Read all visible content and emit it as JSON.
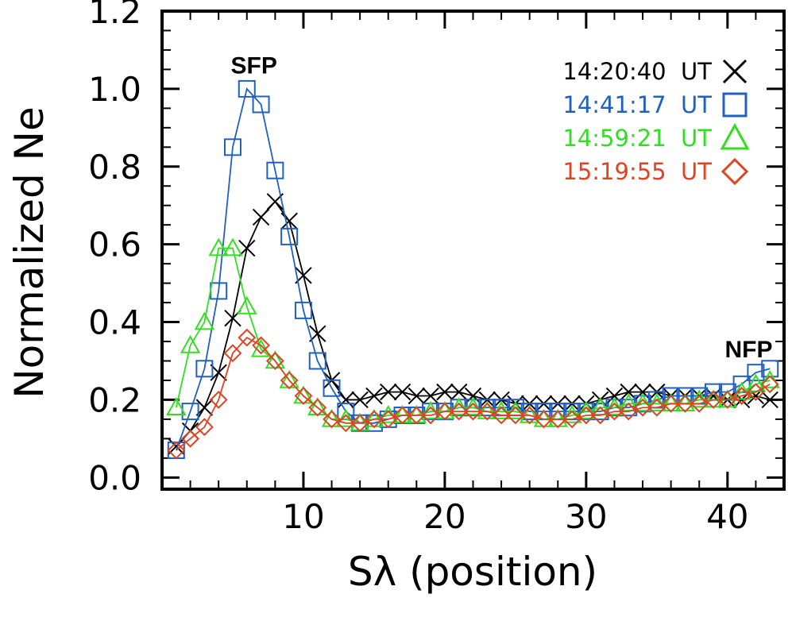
{
  "chart_data": {
    "type": "line",
    "title": "",
    "xlabel": "Sλ (position)",
    "ylabel": "Normalized Ne",
    "xlim": [
      0,
      44
    ],
    "ylim": [
      -0.03,
      1.2
    ],
    "xticks": [
      10,
      20,
      30,
      40
    ],
    "yticks": [
      0.0,
      0.2,
      0.4,
      0.6,
      0.8,
      1.0,
      1.2
    ],
    "ytick_labels": [
      "0.0",
      "0.2",
      "0.4",
      "0.6",
      "0.8",
      "1.0",
      "1.2"
    ],
    "annotations": [
      {
        "text": "SFP",
        "x": 6.5,
        "y": 1.06
      },
      {
        "text": "NFP",
        "x": 41.5,
        "y": 0.33
      }
    ],
    "x": [
      1,
      2,
      3,
      4,
      5,
      6,
      7,
      8,
      9,
      10,
      11,
      12,
      13,
      14,
      15,
      16,
      17,
      18,
      19,
      20,
      21,
      22,
      23,
      24,
      25,
      26,
      27,
      28,
      29,
      30,
      31,
      32,
      33,
      34,
      35,
      36,
      37,
      38,
      39,
      40,
      41,
      42,
      43
    ],
    "series": [
      {
        "name": "14:20:40",
        "legend": "14:20:40  UT",
        "color": "#000000",
        "marker": "x",
        "values": [
          0.08,
          0.12,
          0.18,
          0.27,
          0.41,
          0.59,
          0.67,
          0.71,
          0.66,
          0.52,
          0.37,
          0.25,
          0.2,
          0.2,
          0.21,
          0.22,
          0.22,
          0.21,
          0.21,
          0.22,
          0.22,
          0.21,
          0.2,
          0.2,
          0.19,
          0.19,
          0.19,
          0.19,
          0.19,
          0.19,
          0.2,
          0.21,
          0.22,
          0.22,
          0.22,
          0.21,
          0.21,
          0.21,
          0.21,
          0.2,
          0.2,
          0.21,
          0.2
        ]
      },
      {
        "name": "14:41:17",
        "legend": "14:41:17  UT",
        "color": "#2060c0",
        "marker": "square",
        "values": [
          0.07,
          0.17,
          0.28,
          0.48,
          0.85,
          1.0,
          0.96,
          0.79,
          0.62,
          0.43,
          0.3,
          0.23,
          0.17,
          0.14,
          0.14,
          0.15,
          0.16,
          0.16,
          0.17,
          0.17,
          0.18,
          0.18,
          0.18,
          0.18,
          0.18,
          0.17,
          0.17,
          0.17,
          0.17,
          0.17,
          0.17,
          0.18,
          0.18,
          0.19,
          0.2,
          0.21,
          0.21,
          0.21,
          0.22,
          0.22,
          0.24,
          0.27,
          0.28
        ]
      },
      {
        "name": "14:59:21",
        "legend": "14:59:21  UT",
        "color": "#33dd22",
        "marker": "triangle",
        "values": [
          0.18,
          0.34,
          0.4,
          0.59,
          0.59,
          0.44,
          0.33,
          0.3,
          0.25,
          0.21,
          0.18,
          0.15,
          0.15,
          0.14,
          0.15,
          0.16,
          0.16,
          0.16,
          0.17,
          0.17,
          0.18,
          0.18,
          0.17,
          0.17,
          0.17,
          0.16,
          0.15,
          0.15,
          0.16,
          0.17,
          0.18,
          0.18,
          0.19,
          0.19,
          0.19,
          0.19,
          0.19,
          0.2,
          0.2,
          0.2,
          0.22,
          0.24,
          0.25
        ]
      },
      {
        "name": "15:19:55",
        "legend": "15:19:55  UT",
        "color": "#dd4422",
        "marker": "diamond",
        "values": [
          0.07,
          0.1,
          0.13,
          0.2,
          0.32,
          0.36,
          0.34,
          0.3,
          0.25,
          0.21,
          0.18,
          0.15,
          0.14,
          0.14,
          0.15,
          0.15,
          0.16,
          0.16,
          0.16,
          0.17,
          0.17,
          0.17,
          0.17,
          0.16,
          0.16,
          0.16,
          0.15,
          0.15,
          0.15,
          0.16,
          0.16,
          0.17,
          0.17,
          0.18,
          0.18,
          0.19,
          0.19,
          0.19,
          0.2,
          0.2,
          0.21,
          0.22,
          0.24
        ]
      }
    ]
  }
}
